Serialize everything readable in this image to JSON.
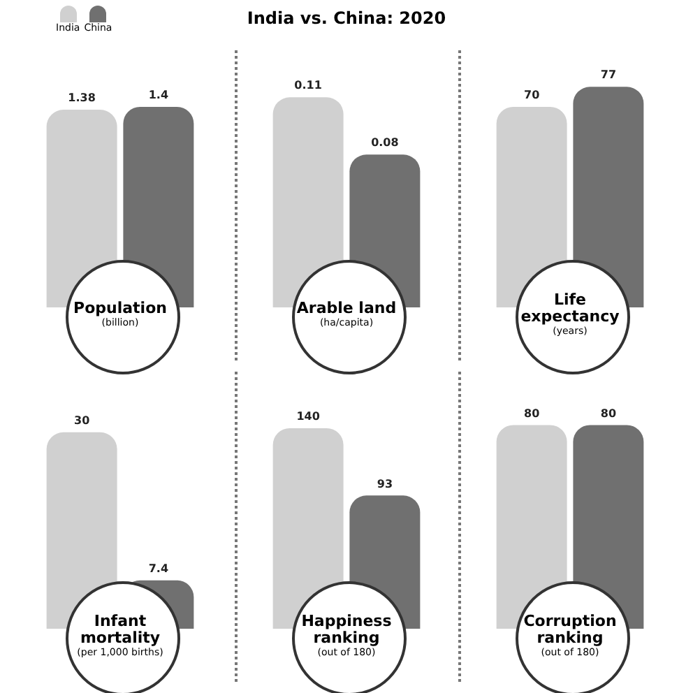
{
  "chart_data": [
    {
      "type": "bar",
      "title": "Population",
      "subtitle": "(billion)",
      "categories": [
        null
      ],
      "tick_labels": false,
      "data_labels": true,
      "legend": "top left",
      "annotations": [
        "India vs. China: 2020"
      ],
      "series": [
        {
          "name": "India",
          "color": "#d0d0d0",
          "values": [
            1.38
          ]
        },
        {
          "name": "China",
          "color": "#707070",
          "values": [
            1.4
          ]
        }
      ]
    },
    {
      "type": "bar",
      "title": "Arable land",
      "subtitle": "(ha/capita)",
      "categories": [
        null
      ],
      "tick_labels": false,
      "data_labels": true,
      "series": [
        {
          "color": "#d0d0d0",
          "values": [
            0.11
          ]
        },
        {
          "color": "#707070",
          "values": [
            0.08
          ]
        }
      ]
    },
    {
      "type": "bar",
      "title": "Life expectancy",
      "subtitle": "(years)",
      "categories": [
        null
      ],
      "tick_labels": false,
      "data_labels": true,
      "series": [
        {
          "color": "#d0d0d0",
          "values": [
            70
          ]
        },
        {
          "color": "#707070",
          "values": [
            77
          ]
        }
      ]
    },
    {
      "type": "bar",
      "title": "Infant mortality",
      "subtitle": "(per 1,000 births)",
      "categories": [
        null
      ],
      "tick_labels": false,
      "data_labels": true,
      "series": [
        {
          "color": "#d0d0d0",
          "values": [
            30
          ]
        },
        {
          "color": "#707070",
          "values": [
            7.4
          ]
        }
      ]
    },
    {
      "type": "bar",
      "title": "Happiness ranking",
      "subtitle": "(out of 180)",
      "categories": [
        null
      ],
      "tick_labels": false,
      "data_labels": true,
      "series": [
        {
          "color": "#d0d0d0",
          "values": [
            140
          ]
        },
        {
          "color": "#707070",
          "values": [
            93
          ]
        }
      ]
    },
    {
      "type": "bar",
      "title": "Corruption ranking",
      "subtitle": "(out of 180)",
      "categories": [
        null
      ],
      "tick_labels": false,
      "data_labels": true,
      "series": [
        {
          "color": "#d0d0d0",
          "values": [
            80
          ]
        },
        {
          "color": "#707070",
          "values": [
            80
          ]
        }
      ]
    }
  ]
}
